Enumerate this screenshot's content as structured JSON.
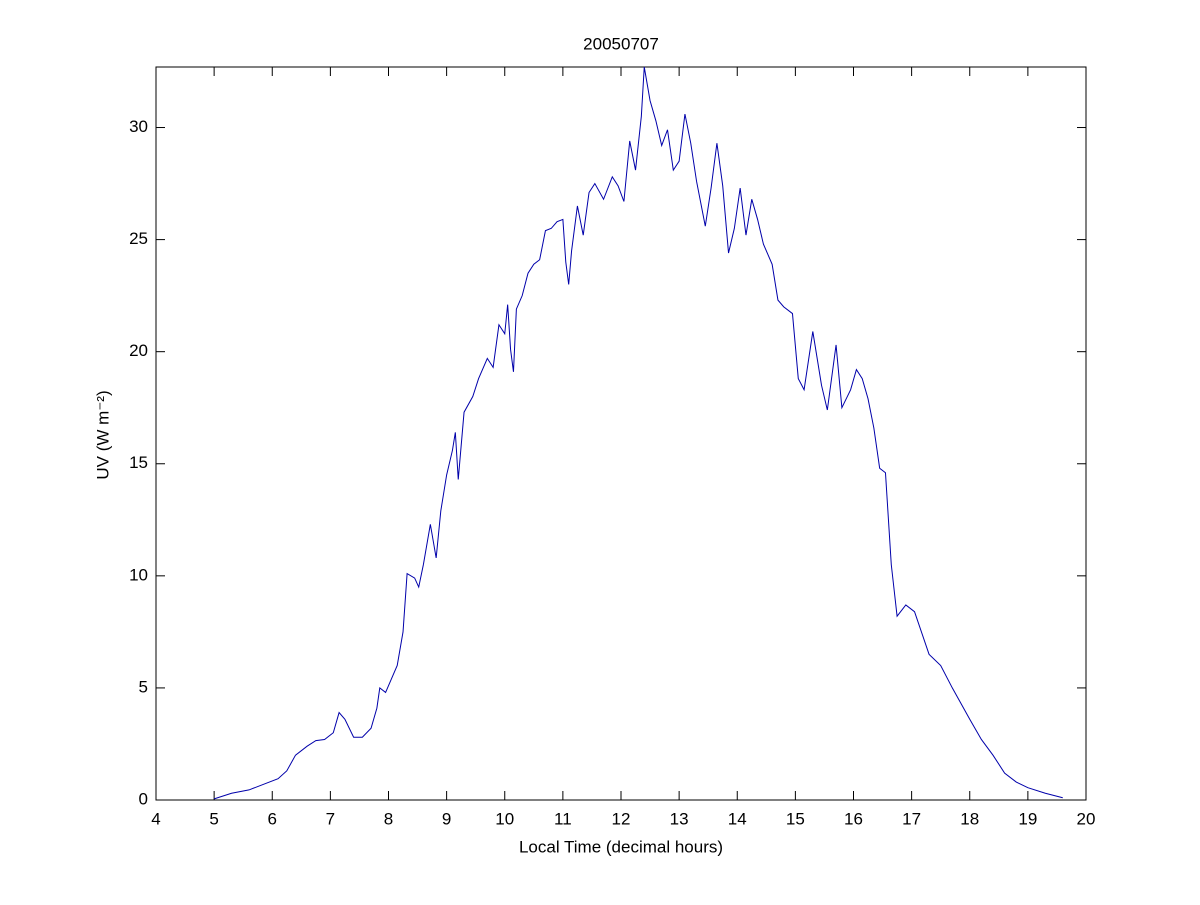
{
  "chart_data": {
    "type": "line",
    "title": "20050707",
    "xlabel": "Local Time (decimal hours)",
    "ylabel": "UV (W m⁻²)",
    "x": [
      5.0,
      5.3,
      5.6,
      5.9,
      6.1,
      6.25,
      6.4,
      6.6,
      6.75,
      6.9,
      7.05,
      7.15,
      7.25,
      7.4,
      7.55,
      7.7,
      7.8,
      7.85,
      7.95,
      8.05,
      8.15,
      8.25,
      8.32,
      8.45,
      8.52,
      8.6,
      8.72,
      8.82,
      8.9,
      9.0,
      9.1,
      9.15,
      9.2,
      9.3,
      9.45,
      9.55,
      9.7,
      9.8,
      9.9,
      10.0,
      10.05,
      10.1,
      10.15,
      10.2,
      10.3,
      10.4,
      10.5,
      10.6,
      10.7,
      10.8,
      10.9,
      11.0,
      11.05,
      11.1,
      11.15,
      11.25,
      11.35,
      11.45,
      11.55,
      11.7,
      11.85,
      11.95,
      12.05,
      12.15,
      12.25,
      12.35,
      12.4,
      12.5,
      12.6,
      12.7,
      12.8,
      12.9,
      13.0,
      13.1,
      13.2,
      13.3,
      13.45,
      13.55,
      13.65,
      13.75,
      13.85,
      13.95,
      14.05,
      14.15,
      14.25,
      14.35,
      14.45,
      14.6,
      14.7,
      14.8,
      14.95,
      15.05,
      15.15,
      15.3,
      15.45,
      15.55,
      15.7,
      15.8,
      15.95,
      16.05,
      16.15,
      16.25,
      16.35,
      16.45,
      16.55,
      16.65,
      16.75,
      16.9,
      17.05,
      17.3,
      17.5,
      17.7,
      18.0,
      18.2,
      18.4,
      18.6,
      18.8,
      19.0,
      19.3,
      19.6
    ],
    "series": [
      {
        "name": "UV",
        "color": "#0000aa",
        "values": [
          0.05,
          0.3,
          0.45,
          0.75,
          0.95,
          1.3,
          2.0,
          2.4,
          2.65,
          2.7,
          3.0,
          3.9,
          3.6,
          2.8,
          2.8,
          3.2,
          4.1,
          5.0,
          4.8,
          5.4,
          6.0,
          7.5,
          10.1,
          9.9,
          9.5,
          10.5,
          12.3,
          10.8,
          12.9,
          14.5,
          15.6,
          16.4,
          14.3,
          17.3,
          18.0,
          18.8,
          19.7,
          19.3,
          21.2,
          20.8,
          22.1,
          20.1,
          19.1,
          21.9,
          22.5,
          23.5,
          23.9,
          24.1,
          25.4,
          25.5,
          25.8,
          25.9,
          24.0,
          23.0,
          24.5,
          26.5,
          25.2,
          27.1,
          27.5,
          26.8,
          27.8,
          27.4,
          26.7,
          29.4,
          28.1,
          30.5,
          32.7,
          31.2,
          30.3,
          29.2,
          29.9,
          28.1,
          28.5,
          30.6,
          29.3,
          27.6,
          25.6,
          27.3,
          29.3,
          27.4,
          24.4,
          25.5,
          27.3,
          25.2,
          26.8,
          25.9,
          24.8,
          23.9,
          22.3,
          22.0,
          21.7,
          18.8,
          18.3,
          20.9,
          18.5,
          17.4,
          20.3,
          17.5,
          18.3,
          19.2,
          18.8,
          17.9,
          16.6,
          14.8,
          14.6,
          10.5,
          8.2,
          8.7,
          8.4,
          6.5,
          6.0,
          5.0,
          3.6,
          2.7,
          2.0,
          1.2,
          0.8,
          0.55,
          0.3,
          0.1
        ]
      }
    ],
    "xlim": [
      4,
      20
    ],
    "xticks": [
      4,
      5,
      6,
      7,
      8,
      9,
      10,
      11,
      12,
      13,
      14,
      15,
      16,
      17,
      18,
      19,
      20
    ],
    "ylim": [
      0,
      32.7
    ],
    "yticks": [
      0,
      5,
      10,
      15,
      20,
      25,
      30
    ],
    "grid": false
  }
}
